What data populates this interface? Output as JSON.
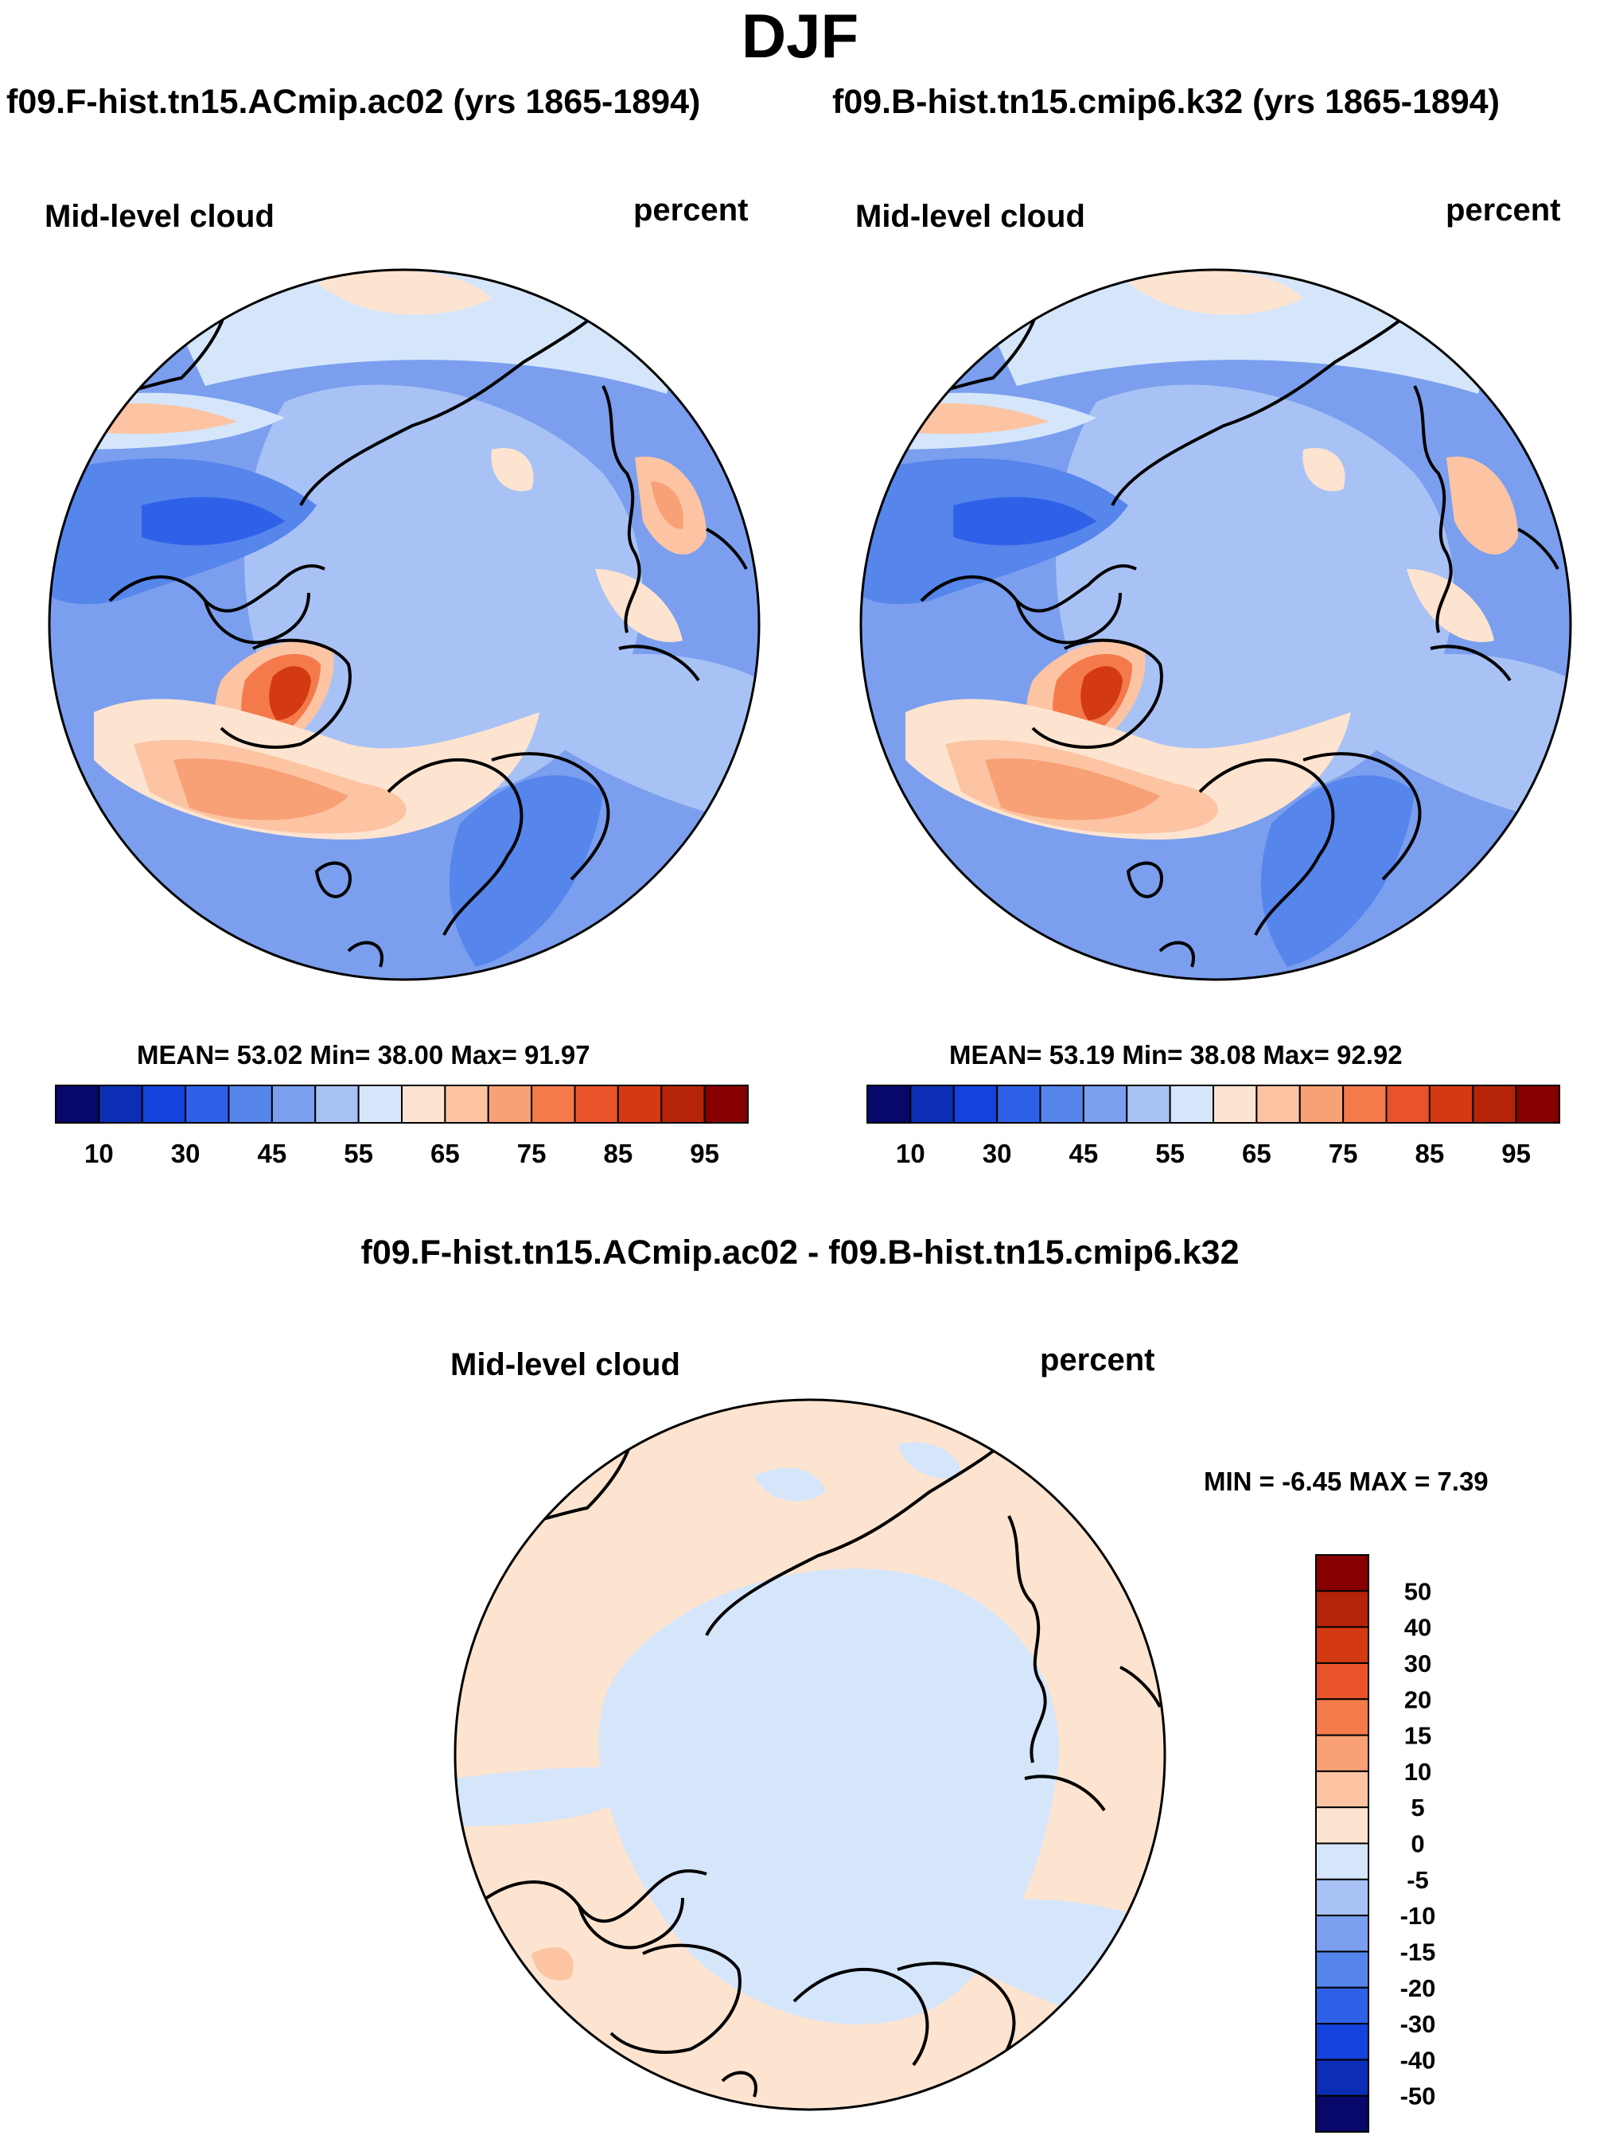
{
  "header": {
    "title": "DJF",
    "left_case": "f09.F-hist.tn15.ACmip.ac02 (yrs 1865-1894)",
    "right_case": "f09.B-hist.tn15.cmip6.k32 (yrs 1865-1894)",
    "diff_title": "f09.F-hist.tn15.ACmip.ac02 - f09.B-hist.tn15.cmip6.k32"
  },
  "panels": {
    "left": {
      "variable": "Mid-level cloud",
      "units": "percent",
      "stats": "MEAN=  53.02  Min=  38.00  Max=  91.97"
    },
    "right": {
      "variable": "Mid-level cloud",
      "units": "percent",
      "stats": "MEAN=  53.19  Min=  38.08  Max=  92.92"
    },
    "diff": {
      "variable": "Mid-level cloud",
      "units": "percent",
      "minmax": "MIN =  -6.45 MAX =   7.39"
    }
  },
  "chart_data": [
    {
      "type": "heatmap",
      "title": "Mid-level cloud",
      "units": "percent",
      "projection": "north polar stereographic",
      "mean": 53.02,
      "min": 38.0,
      "max": 91.97,
      "levels": [
        10,
        20,
        30,
        40,
        45,
        50,
        55,
        60,
        65,
        70,
        75,
        80,
        85,
        90,
        95
      ],
      "tick_labels": [
        "10",
        "30",
        "45",
        "55",
        "65",
        "75",
        "85",
        "95"
      ],
      "colors": [
        "#08086b",
        "#0b2eb4",
        "#1343dc",
        "#2f61e8",
        "#5685ec",
        "#7b9fee",
        "#a9c2f5",
        "#d5e6fb",
        "#fde4d0",
        "#fcc4a3",
        "#f8a176",
        "#f47a4c",
        "#e8532a",
        "#d43a12",
        "#b52308",
        "#860000"
      ]
    },
    {
      "type": "heatmap",
      "title": "Mid-level cloud",
      "units": "percent",
      "projection": "north polar stereographic",
      "mean": 53.19,
      "min": 38.08,
      "max": 92.92,
      "levels": [
        10,
        20,
        30,
        40,
        45,
        50,
        55,
        60,
        65,
        70,
        75,
        80,
        85,
        90,
        95
      ],
      "tick_labels": [
        "10",
        "30",
        "45",
        "55",
        "65",
        "75",
        "85",
        "95"
      ],
      "colors": [
        "#08086b",
        "#0b2eb4",
        "#1343dc",
        "#2f61e8",
        "#5685ec",
        "#7b9fee",
        "#a9c2f5",
        "#d5e6fb",
        "#fde4d0",
        "#fcc4a3",
        "#f8a176",
        "#f47a4c",
        "#e8532a",
        "#d43a12",
        "#b52308",
        "#860000"
      ]
    },
    {
      "type": "heatmap",
      "title": "Mid-level cloud",
      "units": "percent",
      "projection": "north polar stereographic",
      "min": -6.45,
      "max": 7.39,
      "levels": [
        -50,
        -40,
        -30,
        -20,
        -15,
        -10,
        -5,
        0,
        5,
        10,
        15,
        20,
        30,
        40,
        50
      ],
      "tick_labels": [
        "50",
        "40",
        "30",
        "20",
        "15",
        "10",
        "5",
        "0",
        "-5",
        "-10",
        "-15",
        "-20",
        "-30",
        "-40",
        "-50"
      ],
      "colors": [
        "#860000",
        "#b52308",
        "#d43a12",
        "#e8532a",
        "#f47a4c",
        "#f8a176",
        "#fcc4a3",
        "#fde4d0",
        "#d5e6fb",
        "#a9c2f5",
        "#7b9fee",
        "#5685ec",
        "#2f61e8",
        "#1343dc",
        "#0b2eb4",
        "#08086b"
      ]
    }
  ]
}
